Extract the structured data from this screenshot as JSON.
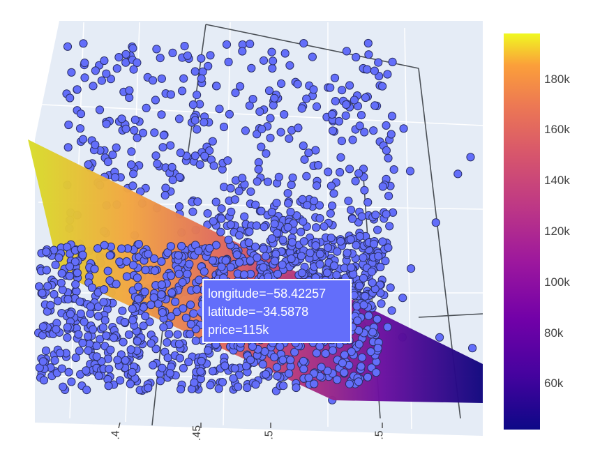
{
  "chart_data": {
    "type": "scatter3d_with_surface",
    "marker_color": "#636efa",
    "marker_outline": "#2a2f66",
    "colorscale": "plasma",
    "colorbar": {
      "range": [
        42000,
        198000
      ],
      "ticks": [
        {
          "value": 60000,
          "label": "60k"
        },
        {
          "value": 80000,
          "label": "80k"
        },
        {
          "value": 100000,
          "label": "100k"
        },
        {
          "value": 120000,
          "label": "120k"
        },
        {
          "value": 140000,
          "label": "140k"
        },
        {
          "value": 160000,
          "label": "160k"
        },
        {
          "value": 180000,
          "label": "180k"
        }
      ]
    },
    "axis_tick_labels": [
      ".4",
      ".45",
      ".5",
      ".5"
    ],
    "hover": {
      "lines": [
        "longitude=−58.42257",
        "latitude=−34.5878",
        "price=115k"
      ]
    }
  }
}
